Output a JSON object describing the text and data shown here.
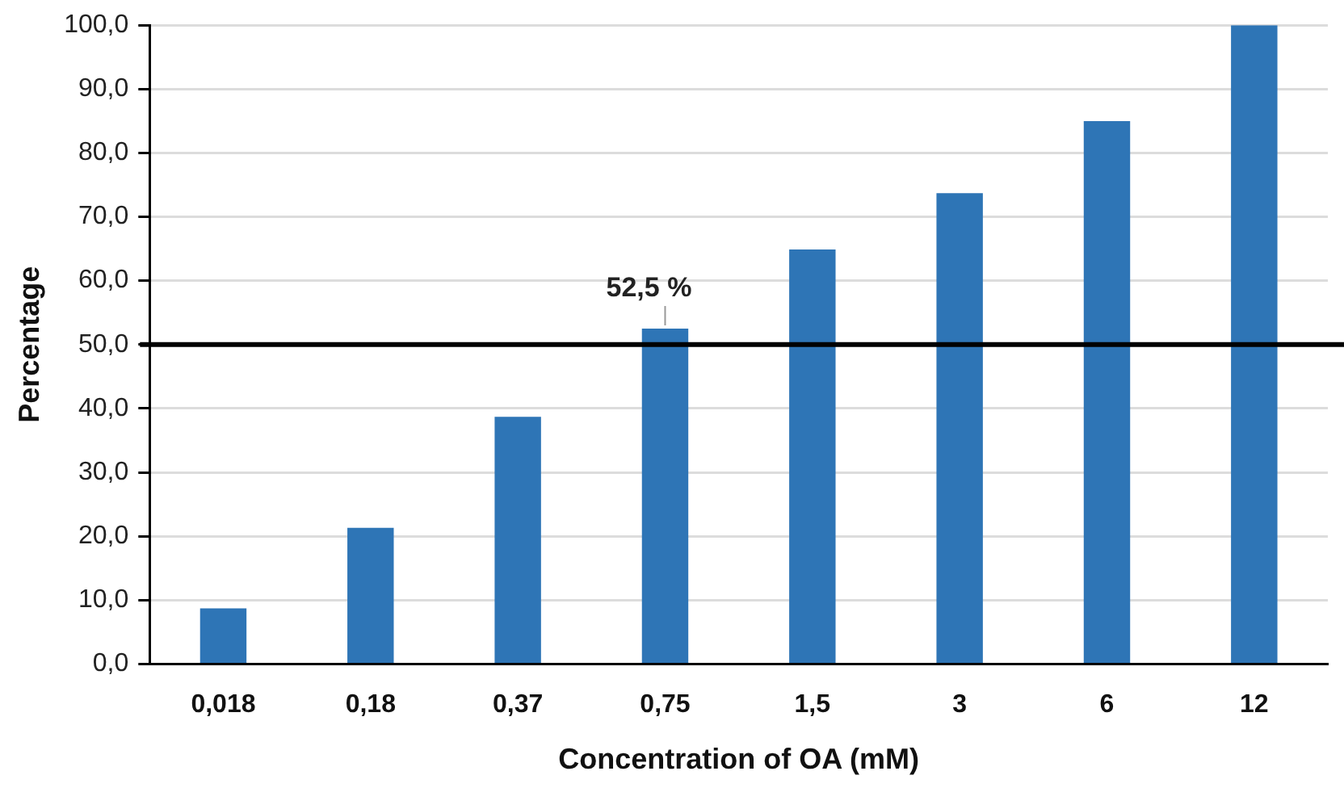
{
  "chart_data": {
    "type": "bar",
    "xlabel": "Concentration of OA (mM)",
    "ylabel": "Percentage",
    "categories": [
      "0,018",
      "0,18",
      "0,37",
      "0,75",
      "1,5",
      "3",
      "6",
      "12"
    ],
    "values": [
      8.7,
      21.3,
      38.7,
      52.5,
      64.9,
      73.7,
      85.0,
      100.0
    ],
    "color": "#2e75b6",
    "ylim": [
      0,
      100
    ],
    "yticks": [
      {
        "value": 0,
        "label": "0,0"
      },
      {
        "value": 10,
        "label": "10,0"
      },
      {
        "value": 20,
        "label": "20,0"
      },
      {
        "value": 30,
        "label": "30,0"
      },
      {
        "value": 40,
        "label": "40,0"
      },
      {
        "value": 50,
        "label": "50,0"
      },
      {
        "value": 60,
        "label": "60,0"
      },
      {
        "value": 70,
        "label": "70,0"
      },
      {
        "value": 80,
        "label": "80,0"
      },
      {
        "value": 90,
        "label": "90,0"
      },
      {
        "value": 100,
        "label": "100,0"
      }
    ],
    "grid": "y",
    "ref_lines": [
      {
        "axis": "y",
        "value": 50,
        "color": "#000000"
      }
    ],
    "annotations": [
      {
        "text": "52,5 %",
        "x": "0,75",
        "y": 52.5
      }
    ]
  }
}
